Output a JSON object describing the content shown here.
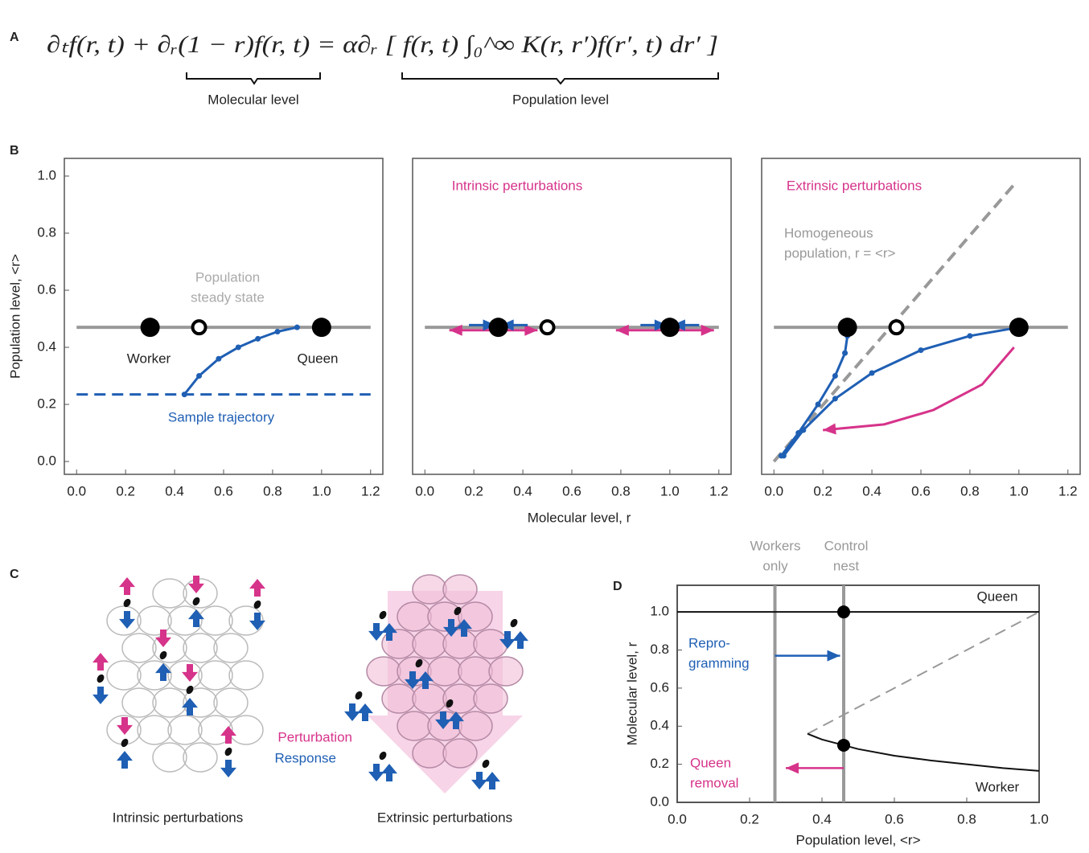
{
  "panel_labels": [
    "A",
    "B",
    "C",
    "D"
  ],
  "equation": {
    "text": "∂ₜf(r, t) + ∂ᵣ(1 − r)f(r, t) = α∂ᵣ [ f(r, t) ∫₀^∞ K(r, r′)f(r′, t) dr′ ]",
    "molecular_label": "Molecular level",
    "population_label": "Population level"
  },
  "diagram": {
    "perturbation": "Perturbation",
    "response": "Response",
    "intrinsic_caption": "Intrinsic perturbations",
    "extrinsic_caption": "Extrinsic perturbations"
  },
  "chart_data": [
    {
      "type": "line",
      "ylabel": "Population level, <r>",
      "xlim": [
        -0.05,
        1.25
      ],
      "ylim": [
        -0.045,
        1.062
      ],
      "xticks": [
        {
          "value": 0,
          "label": "0.0"
        },
        {
          "value": 0.2,
          "label": "0.2"
        },
        {
          "value": 0.4,
          "label": "0.4"
        },
        {
          "value": 0.6,
          "label": "0.6"
        },
        {
          "value": 0.8,
          "label": "0.8"
        },
        {
          "value": 1,
          "label": "1.0"
        },
        {
          "value": 1.2,
          "label": "1.2"
        }
      ],
      "yticks": [
        {
          "value": 0,
          "label": "0.0"
        },
        {
          "value": 0.2,
          "label": "0.2"
        },
        {
          "value": 0.4,
          "label": "0.4"
        },
        {
          "value": 0.6,
          "label": "0.6"
        },
        {
          "value": 0.8,
          "label": "0.8"
        },
        {
          "value": 1,
          "label": "1.0"
        }
      ],
      "series": [
        {
          "color": "#999999",
          "width": 4,
          "x": [
            0,
            1.2
          ],
          "values": [
            0.47,
            0.47
          ]
        },
        {
          "color": "#1f5fb4",
          "width": 3,
          "dash": true,
          "x": [
            0,
            1.2
          ],
          "values": [
            0.235,
            0.235
          ]
        },
        {
          "color": "#1f5fb4",
          "width": 3,
          "markers": true,
          "x": [
            0.44,
            0.5,
            0.58,
            0.66,
            0.74,
            0.82,
            0.9
          ],
          "values": [
            0.235,
            0.3,
            0.36,
            0.4,
            0.43,
            0.455,
            0.47
          ]
        }
      ],
      "points": [
        {
          "x": 0.3,
          "y": 0.47,
          "filled": true
        },
        {
          "x": 0.5,
          "y": 0.47,
          "filled": false
        },
        {
          "x": 1.0,
          "y": 0.47,
          "filled": true
        }
      ],
      "annotations": [
        {
          "text": [
            "Population",
            "steady state"
          ],
          "color": "#aaaaaa"
        },
        {
          "text": [
            "Worker"
          ],
          "color": "#222222"
        },
        {
          "text": [
            "Queen"
          ],
          "color": "#222222"
        },
        {
          "text": [
            "Sample trajectory"
          ],
          "color": "#1f5fb4"
        }
      ]
    },
    {
      "type": "line",
      "xlabel": "Molecular level, r",
      "xlim": [
        -0.05,
        1.25
      ],
      "ylim": [
        -0.045,
        1.062
      ],
      "xticks": [
        {
          "value": 0,
          "label": "0.0"
        },
        {
          "value": 0.2,
          "label": "0.2"
        },
        {
          "value": 0.4,
          "label": "0.4"
        },
        {
          "value": 0.6,
          "label": "0.6"
        },
        {
          "value": 0.8,
          "label": "0.8"
        },
        {
          "value": 1,
          "label": "1.0"
        },
        {
          "value": 1.2,
          "label": "1.2"
        }
      ],
      "series": [
        {
          "color": "#999999",
          "width": 4,
          "x": [
            0,
            1.2
          ],
          "values": [
            0.47,
            0.47
          ]
        },
        {
          "color": "#d6338a",
          "width": 3,
          "arrow": "both",
          "x": [
            0.1,
            0.46
          ],
          "values": [
            0.46,
            0.46
          ]
        },
        {
          "color": "#d6338a",
          "width": 3,
          "arrow": "both",
          "x": [
            0.78,
            1.18
          ],
          "values": [
            0.46,
            0.46
          ]
        },
        {
          "color": "#1f5fb4",
          "width": 3,
          "arrow": "end",
          "x": [
            0.18,
            0.29
          ],
          "values": [
            0.478,
            0.478
          ]
        },
        {
          "color": "#1f5fb4",
          "width": 3,
          "arrow": "end",
          "x": [
            0.42,
            0.31
          ],
          "values": [
            0.478,
            0.478
          ]
        },
        {
          "color": "#1f5fb4",
          "width": 3,
          "arrow": "end",
          "x": [
            0.88,
            0.99
          ],
          "values": [
            0.478,
            0.478
          ]
        },
        {
          "color": "#1f5fb4",
          "width": 3,
          "arrow": "end",
          "x": [
            1.12,
            1.01
          ],
          "values": [
            0.478,
            0.478
          ]
        }
      ],
      "points": [
        {
          "x": 0.3,
          "y": 0.47,
          "filled": true
        },
        {
          "x": 0.5,
          "y": 0.47,
          "filled": false
        },
        {
          "x": 1.0,
          "y": 0.47,
          "filled": true
        }
      ],
      "annotations": [
        {
          "text": [
            "Intrinsic perturbations"
          ],
          "color": "#d6338a"
        }
      ]
    },
    {
      "type": "line",
      "xlim": [
        -0.05,
        1.25
      ],
      "ylim": [
        -0.045,
        1.062
      ],
      "xticks": [
        {
          "value": 0,
          "label": "0.0"
        },
        {
          "value": 0.2,
          "label": "0.2"
        },
        {
          "value": 0.4,
          "label": "0.4"
        },
        {
          "value": 0.6,
          "label": "0.6"
        },
        {
          "value": 0.8,
          "label": "0.8"
        },
        {
          "value": 1,
          "label": "1.0"
        },
        {
          "value": 1.2,
          "label": "1.2"
        }
      ],
      "series": [
        {
          "color": "#999999",
          "width": 4,
          "x": [
            0,
            1.2
          ],
          "values": [
            0.47,
            0.47
          ]
        },
        {
          "color": "#999999",
          "width": 4,
          "dash": true,
          "x": [
            0,
            0.98
          ],
          "values": [
            0,
            0.97
          ]
        },
        {
          "color": "#1f5fb4",
          "width": 3,
          "markers": true,
          "x": [
            0.3,
            0.29,
            0.25,
            0.18,
            0.1,
            0.03
          ],
          "values": [
            0.44,
            0.38,
            0.3,
            0.2,
            0.1,
            0.02
          ]
        },
        {
          "color": "#1f5fb4",
          "width": 3,
          "markers": true,
          "x": [
            1.0,
            0.8,
            0.6,
            0.4,
            0.25,
            0.12,
            0.04
          ],
          "values": [
            0.47,
            0.44,
            0.39,
            0.31,
            0.22,
            0.11,
            0.02
          ]
        },
        {
          "color": "#d6338a",
          "width": 3,
          "arrow": "end",
          "x": [
            0.98,
            0.85,
            0.65,
            0.45,
            0.2
          ],
          "values": [
            0.4,
            0.27,
            0.18,
            0.13,
            0.11
          ]
        }
      ],
      "points": [
        {
          "x": 0.3,
          "y": 0.47,
          "filled": true
        },
        {
          "x": 0.5,
          "y": 0.47,
          "filled": false
        },
        {
          "x": 1.0,
          "y": 0.47,
          "filled": true
        }
      ],
      "annotations": [
        {
          "text": [
            "Extrinsic perturbations"
          ],
          "color": "#d6338a"
        },
        {
          "text": [
            "Homogeneous",
            "population, r = <r>"
          ],
          "color": "#999999"
        }
      ]
    },
    {
      "type": "line",
      "xlabel": "Population level, <r>",
      "ylabel": "Molecular level, r",
      "xlim": [
        0,
        1
      ],
      "ylim": [
        0,
        1.14
      ],
      "xticks": [
        {
          "value": 0,
          "label": "0.0"
        },
        {
          "value": 0.2,
          "label": "0.2"
        },
        {
          "value": 0.4,
          "label": "0.4"
        },
        {
          "value": 0.6,
          "label": "0.6"
        },
        {
          "value": 0.8,
          "label": "0.8"
        },
        {
          "value": 1,
          "label": "1.0"
        }
      ],
      "yticks": [
        {
          "value": 0,
          "label": "0.0"
        },
        {
          "value": 0.2,
          "label": "0.2"
        },
        {
          "value": 0.4,
          "label": "0.4"
        },
        {
          "value": 0.6,
          "label": "0.6"
        },
        {
          "value": 0.8,
          "label": "0.8"
        },
        {
          "value": 1,
          "label": "1.0"
        }
      ],
      "series": [
        {
          "color": "#999999",
          "width": 4,
          "x": [
            0.27,
            0.27
          ],
          "values": [
            0,
            1.14
          ]
        },
        {
          "color": "#999999",
          "width": 4,
          "x": [
            0.46,
            0.46
          ],
          "values": [
            0,
            1.14
          ]
        },
        {
          "color": "#999999",
          "width": 2,
          "dash": true,
          "x": [
            0.36,
            1.0
          ],
          "values": [
            0.36,
            1.0
          ]
        },
        {
          "color": "#111111",
          "width": 2,
          "x": [
            0,
            1.0
          ],
          "values": [
            1.0,
            1.0
          ]
        },
        {
          "color": "#111111",
          "width": 2,
          "x": [
            0.36,
            0.4,
            0.5,
            0.6,
            0.7,
            0.8,
            0.9,
            1.0
          ],
          "values": [
            0.36,
            0.33,
            0.28,
            0.245,
            0.22,
            0.2,
            0.18,
            0.165
          ]
        },
        {
          "color": "#1f5fb4",
          "width": 2.5,
          "arrow": "end",
          "x": [
            0.27,
            0.45
          ],
          "values": [
            0.77,
            0.77
          ]
        },
        {
          "color": "#d6338a",
          "width": 2.5,
          "arrow": "end",
          "x": [
            0.46,
            0.3
          ],
          "values": [
            0.18,
            0.18
          ]
        }
      ],
      "points": [
        {
          "x": 0.46,
          "y": 1.0,
          "filled": true
        },
        {
          "x": 0.46,
          "y": 0.3,
          "filled": true
        }
      ],
      "annotations": [
        {
          "text": [
            "Queen"
          ],
          "color": "#222222"
        },
        {
          "text": [
            "Worker"
          ],
          "color": "#222222"
        },
        {
          "text": [
            "Repro-",
            "gramming"
          ],
          "color": "#1f5fb4"
        },
        {
          "text": [
            "Queen",
            "removal"
          ],
          "color": "#d6338a"
        },
        {
          "text": [
            "Workers",
            "only"
          ],
          "color": "#999999"
        },
        {
          "text": [
            "Control",
            "nest"
          ],
          "color": "#999999"
        }
      ]
    }
  ]
}
